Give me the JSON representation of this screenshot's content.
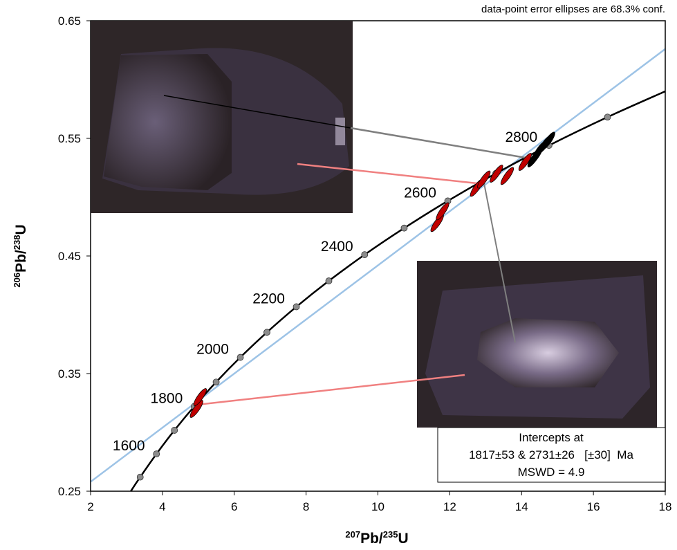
{
  "chart_data": {
    "type": "concordia",
    "note": "data-point error ellipses are 68.3% conf.",
    "xlabel": [
      "207",
      "Pb/",
      "235",
      "U"
    ],
    "ylabel": [
      "206",
      "Pb/",
      "238",
      "U"
    ],
    "xlim": [
      2,
      18
    ],
    "ylim": [
      0.25,
      0.65
    ],
    "xticks": [
      2,
      4,
      6,
      8,
      10,
      12,
      14,
      16,
      18
    ],
    "yticks": [
      0.25,
      0.35,
      0.45,
      0.55,
      0.65
    ],
    "curve": {
      "color": "#000000",
      "x": [
        3.12,
        3.381,
        3.834,
        4.334,
        4.886,
        5.496,
        6.169,
        6.91,
        7.729,
        8.633,
        9.63,
        10.731,
        11.945,
        13.284,
        14.762,
        16.393,
        18
      ],
      "y": [
        0.25,
        0.262,
        0.2817,
        0.3018,
        0.3221,
        0.3428,
        0.3638,
        0.3851,
        0.4068,
        0.4288,
        0.4511,
        0.4737,
        0.4968,
        0.5202,
        0.544,
        0.5681,
        0.59
      ]
    },
    "markers": {
      "color": "#8c8c8c",
      "x": [
        3.381,
        3.834,
        4.334,
        4.886,
        5.496,
        6.169,
        6.91,
        7.729,
        8.633,
        9.63,
        10.731,
        11.945,
        13.284,
        14.762,
        16.393
      ],
      "y": [
        0.262,
        0.2817,
        0.3018,
        0.3221,
        0.3428,
        0.3638,
        0.3851,
        0.4068,
        0.4288,
        0.4511,
        0.4737,
        0.4968,
        0.5202,
        0.544,
        0.5681
      ],
      "labels": [
        null,
        "1600",
        null,
        "1800",
        null,
        "2000",
        null,
        "2200",
        null,
        "2400",
        null,
        "2600",
        null,
        "2800",
        null
      ]
    },
    "discordia": {
      "color": "#9dc3e6",
      "x": [
        2,
        18
      ],
      "y": [
        0.258,
        0.626
      ]
    },
    "ellipses": [
      {
        "color": "#c00000",
        "x": [
          4.95,
          5.05,
          11.65,
          11.8,
          12.75,
          12.95,
          13.3,
          13.6,
          14.1,
          14.4
        ],
        "y": [
          0.32,
          0.33,
          0.478,
          0.488,
          0.508,
          0.515,
          0.52,
          0.518,
          0.53,
          0.535
        ]
      },
      {
        "color": "#000000",
        "x": [
          14.35,
          14.5,
          14.65,
          14.75
        ],
        "y": [
          0.533,
          0.54,
          0.545,
          0.548
        ]
      }
    ],
    "result_box": [
      "Intercepts at",
      "1817±53 & 2731±26   [±30]  Ma",
      "MSWD = 4.9"
    ]
  }
}
